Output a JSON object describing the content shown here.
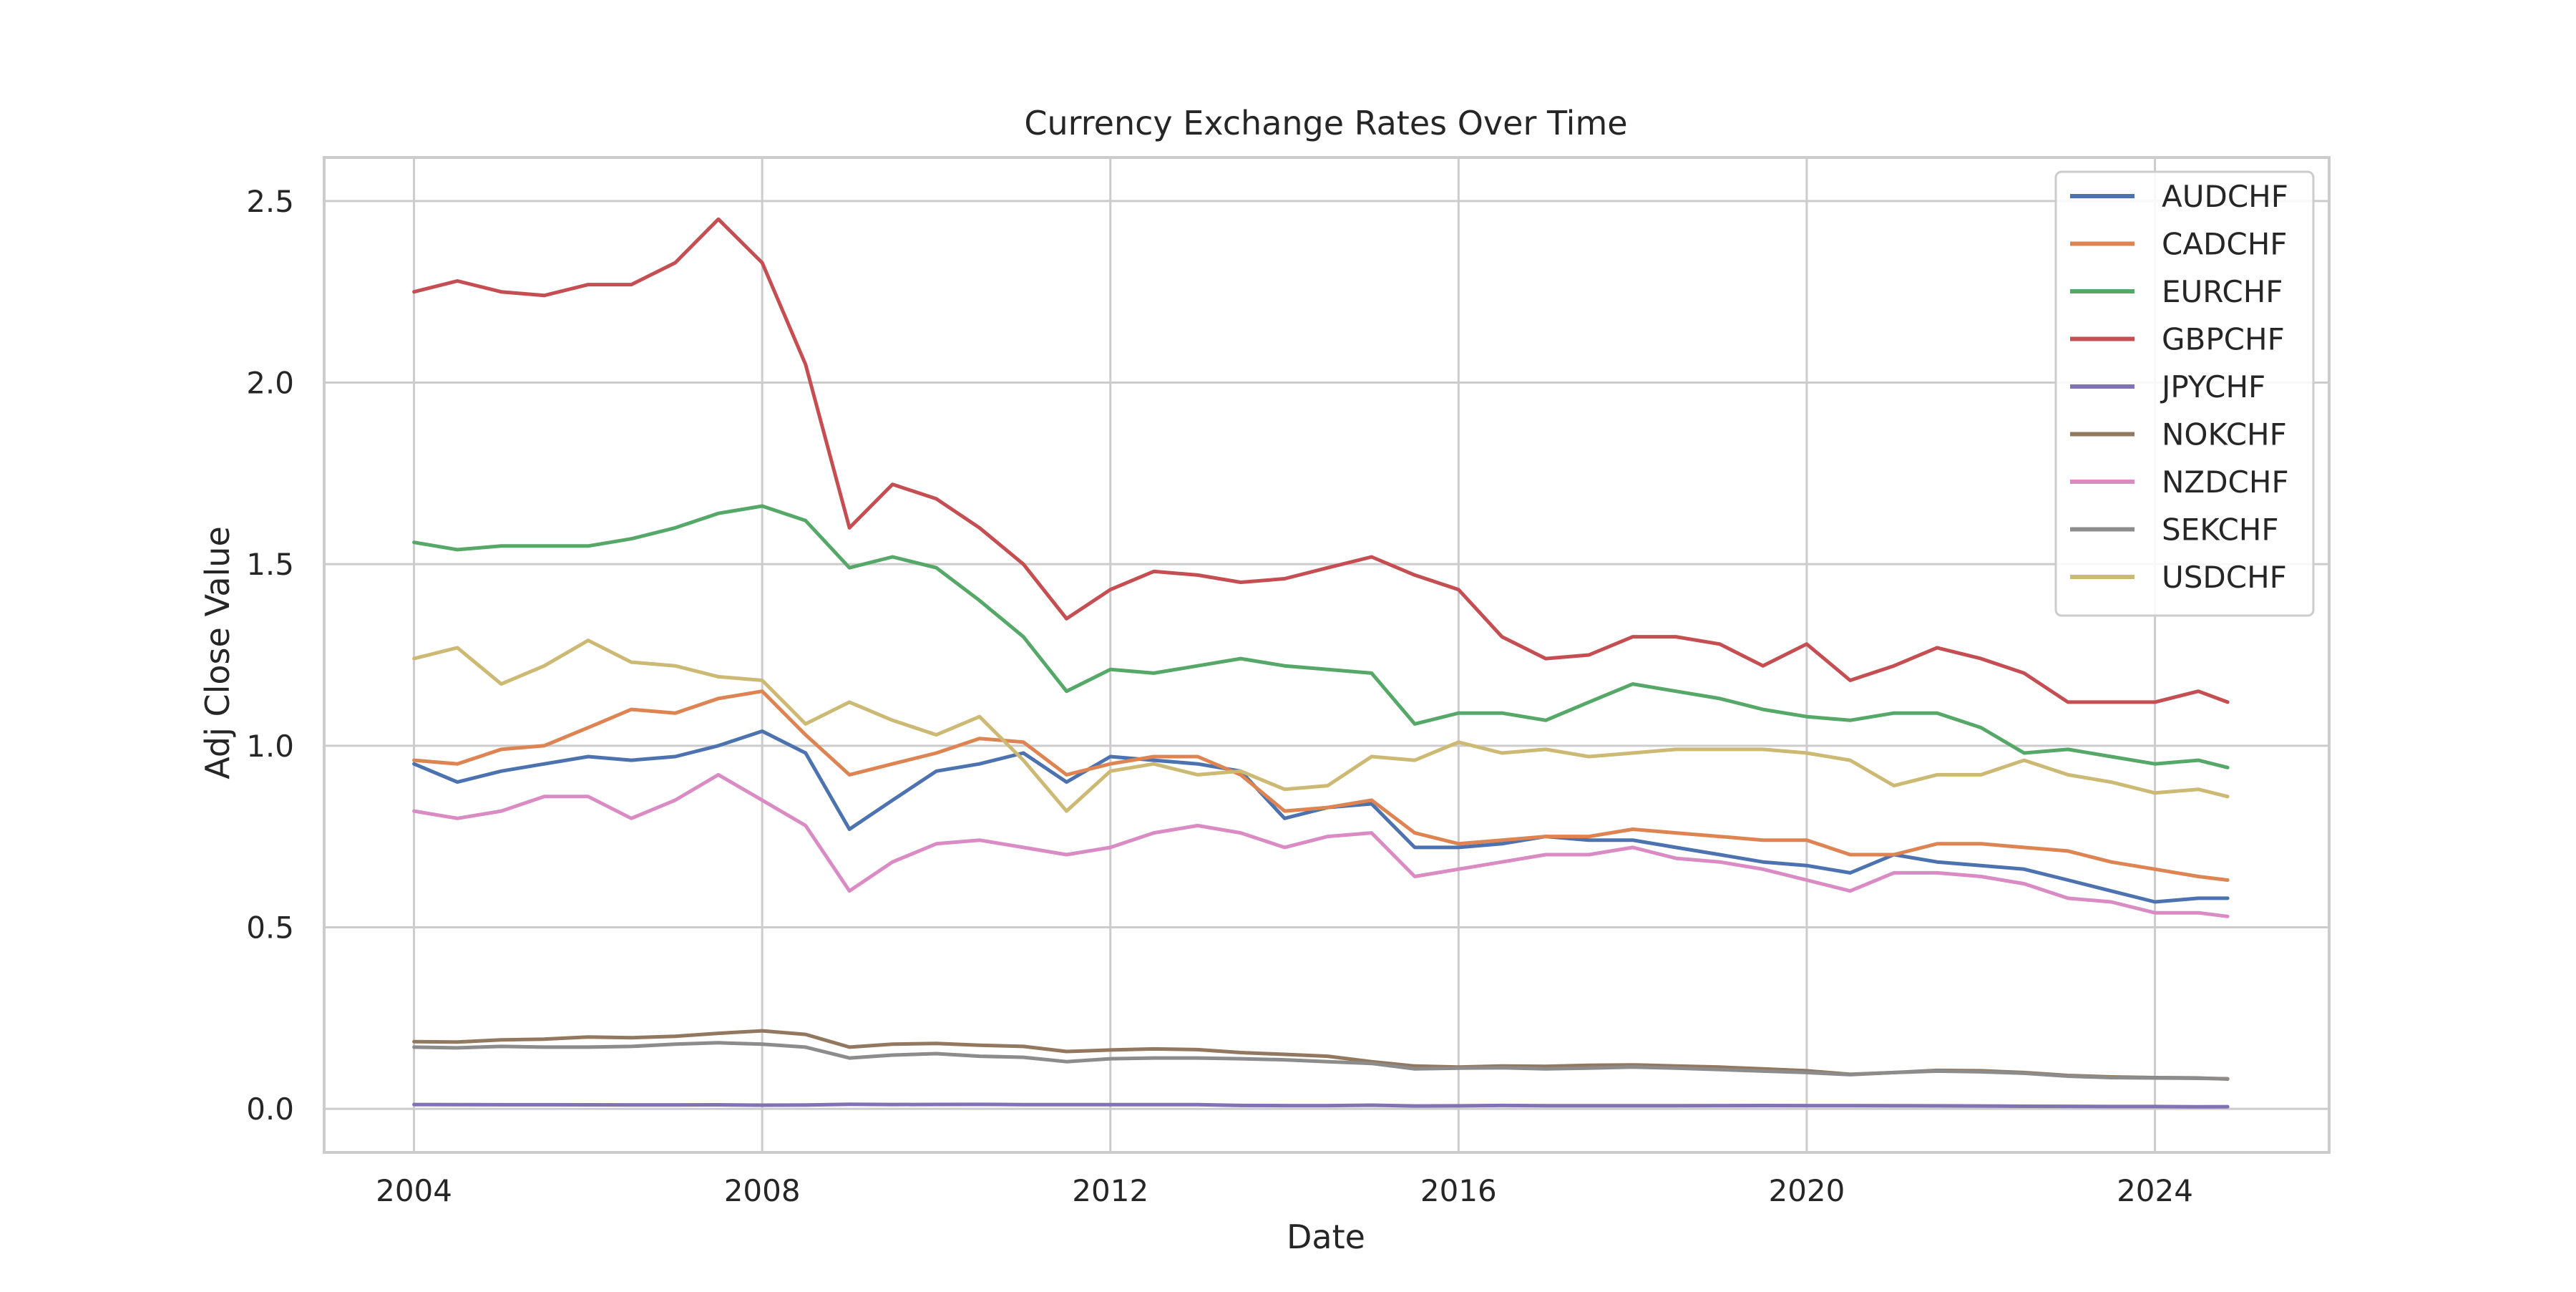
{
  "chart_data": {
    "type": "line",
    "title": "Currency Exchange Rates Over Time",
    "xlabel": "Date",
    "ylabel": "Adj Close Value",
    "xlim": [
      "2002-12-20",
      "2026-01-01"
    ],
    "ylim": [
      -0.12,
      2.62
    ],
    "x_ticks": [
      {
        "date": "2004-01-01",
        "label": "2004"
      },
      {
        "date": "2008-01-01",
        "label": "2008"
      },
      {
        "date": "2012-01-01",
        "label": "2012"
      },
      {
        "date": "2016-01-01",
        "label": "2016"
      },
      {
        "date": "2020-01-01",
        "label": "2020"
      },
      {
        "date": "2024-01-01",
        "label": "2024"
      }
    ],
    "y_ticks": [
      {
        "value": 0.0,
        "label": "0.0"
      },
      {
        "value": 0.5,
        "label": "0.5"
      },
      {
        "value": 1.0,
        "label": "1.0"
      },
      {
        "value": 1.5,
        "label": "1.5"
      },
      {
        "value": 2.0,
        "label": "2.0"
      },
      {
        "value": 2.5,
        "label": "2.5"
      }
    ],
    "grid": true,
    "legend_position": "top-right",
    "x": [
      "2004-01-01",
      "2004-07-01",
      "2005-01-01",
      "2005-07-01",
      "2006-01-01",
      "2006-07-01",
      "2007-01-01",
      "2007-07-01",
      "2008-01-01",
      "2008-07-01",
      "2009-01-01",
      "2009-07-01",
      "2010-01-01",
      "2010-07-01",
      "2011-01-01",
      "2011-07-01",
      "2012-01-01",
      "2012-07-01",
      "2013-01-01",
      "2013-07-01",
      "2014-01-01",
      "2014-07-01",
      "2015-01-01",
      "2015-07-01",
      "2016-01-01",
      "2016-07-01",
      "2017-01-01",
      "2017-07-01",
      "2018-01-01",
      "2018-07-01",
      "2019-01-01",
      "2019-07-01",
      "2020-01-01",
      "2020-07-01",
      "2021-01-01",
      "2021-07-01",
      "2022-01-01",
      "2022-07-01",
      "2023-01-01",
      "2023-07-01",
      "2024-01-01",
      "2024-07-01",
      "2024-11-01"
    ],
    "series": [
      {
        "name": "AUDCHF",
        "color": "#4c72b0",
        "values": [
          0.95,
          0.9,
          0.93,
          0.95,
          0.97,
          0.96,
          0.97,
          1.0,
          1.04,
          0.98,
          0.77,
          0.85,
          0.93,
          0.95,
          0.98,
          0.9,
          0.97,
          0.96,
          0.95,
          0.93,
          0.8,
          0.83,
          0.84,
          0.72,
          0.72,
          0.73,
          0.75,
          0.74,
          0.74,
          0.72,
          0.7,
          0.68,
          0.67,
          0.65,
          0.7,
          0.68,
          0.67,
          0.66,
          0.63,
          0.6,
          0.57,
          0.58,
          0.58
        ]
      },
      {
        "name": "CADCHF",
        "color": "#dd8452",
        "values": [
          0.96,
          0.95,
          0.99,
          1.0,
          1.05,
          1.1,
          1.09,
          1.13,
          1.15,
          1.03,
          0.92,
          0.95,
          0.98,
          1.02,
          1.01,
          0.92,
          0.95,
          0.97,
          0.97,
          0.92,
          0.82,
          0.83,
          0.85,
          0.76,
          0.73,
          0.74,
          0.75,
          0.75,
          0.77,
          0.76,
          0.75,
          0.74,
          0.74,
          0.7,
          0.7,
          0.73,
          0.73,
          0.72,
          0.71,
          0.68,
          0.66,
          0.64,
          0.63
        ]
      },
      {
        "name": "EURCHF",
        "color": "#55a868",
        "values": [
          1.56,
          1.54,
          1.55,
          1.55,
          1.55,
          1.57,
          1.6,
          1.64,
          1.66,
          1.62,
          1.49,
          1.52,
          1.49,
          1.4,
          1.3,
          1.15,
          1.21,
          1.2,
          1.22,
          1.24,
          1.22,
          1.21,
          1.2,
          1.06,
          1.09,
          1.09,
          1.07,
          1.12,
          1.17,
          1.15,
          1.13,
          1.1,
          1.08,
          1.07,
          1.09,
          1.09,
          1.05,
          0.98,
          0.99,
          0.97,
          0.95,
          0.96,
          0.94
        ]
      },
      {
        "name": "GBPCHF",
        "color": "#c44e52",
        "values": [
          2.25,
          2.28,
          2.25,
          2.24,
          2.27,
          2.27,
          2.33,
          2.45,
          2.33,
          2.05,
          1.6,
          1.72,
          1.68,
          1.6,
          1.5,
          1.35,
          1.43,
          1.48,
          1.47,
          1.45,
          1.46,
          1.49,
          1.52,
          1.47,
          1.43,
          1.3,
          1.24,
          1.25,
          1.3,
          1.3,
          1.28,
          1.22,
          1.28,
          1.18,
          1.22,
          1.27,
          1.24,
          1.2,
          1.12,
          1.12,
          1.12,
          1.15,
          1.12
        ]
      },
      {
        "name": "JPYCHF",
        "color": "#8172b3",
        "values": [
          0.0118,
          0.0116,
          0.0113,
          0.0112,
          0.011,
          0.0109,
          0.0108,
          0.011,
          0.0101,
          0.0105,
          0.0125,
          0.0118,
          0.012,
          0.0122,
          0.0117,
          0.0115,
          0.0116,
          0.0115,
          0.0114,
          0.0094,
          0.009,
          0.009,
          0.0101,
          0.008,
          0.0084,
          0.0094,
          0.0086,
          0.0088,
          0.0087,
          0.0088,
          0.009,
          0.0091,
          0.0089,
          0.009,
          0.0088,
          0.0083,
          0.008,
          0.0071,
          0.007,
          0.0064,
          0.0063,
          0.0058,
          0.0059
        ]
      },
      {
        "name": "NOKCHF",
        "color": "#937860",
        "values": [
          0.185,
          0.184,
          0.19,
          0.192,
          0.198,
          0.196,
          0.2,
          0.208,
          0.215,
          0.205,
          0.17,
          0.178,
          0.18,
          0.175,
          0.172,
          0.158,
          0.162,
          0.165,
          0.163,
          0.155,
          0.15,
          0.145,
          0.13,
          0.118,
          0.115,
          0.118,
          0.117,
          0.12,
          0.121,
          0.118,
          0.115,
          0.11,
          0.105,
          0.095,
          0.1,
          0.106,
          0.105,
          0.1,
          0.092,
          0.088,
          0.086,
          0.085,
          0.082
        ]
      },
      {
        "name": "NZDCHF",
        "color": "#da8bc3",
        "values": [
          0.82,
          0.8,
          0.82,
          0.86,
          0.86,
          0.8,
          0.85,
          0.92,
          0.85,
          0.78,
          0.6,
          0.68,
          0.73,
          0.74,
          0.72,
          0.7,
          0.72,
          0.76,
          0.78,
          0.76,
          0.72,
          0.75,
          0.76,
          0.64,
          0.66,
          0.68,
          0.7,
          0.7,
          0.72,
          0.69,
          0.68,
          0.66,
          0.63,
          0.6,
          0.65,
          0.65,
          0.64,
          0.62,
          0.58,
          0.57,
          0.54,
          0.54,
          0.53
        ]
      },
      {
        "name": "SEKCHF",
        "color": "#8c8c8c",
        "values": [
          0.17,
          0.168,
          0.172,
          0.17,
          0.17,
          0.172,
          0.178,
          0.182,
          0.178,
          0.17,
          0.14,
          0.148,
          0.152,
          0.145,
          0.142,
          0.13,
          0.138,
          0.14,
          0.14,
          0.138,
          0.135,
          0.13,
          0.125,
          0.11,
          0.112,
          0.113,
          0.11,
          0.112,
          0.115,
          0.112,
          0.108,
          0.104,
          0.1,
          0.094,
          0.1,
          0.104,
          0.102,
          0.098,
          0.09,
          0.086,
          0.085,
          0.084,
          0.083
        ]
      },
      {
        "name": "USDCHF",
        "color": "#ccb974",
        "values": [
          1.24,
          1.27,
          1.17,
          1.22,
          1.29,
          1.23,
          1.22,
          1.19,
          1.18,
          1.06,
          1.12,
          1.07,
          1.03,
          1.08,
          0.96,
          0.82,
          0.93,
          0.95,
          0.92,
          0.93,
          0.88,
          0.89,
          0.97,
          0.96,
          1.01,
          0.98,
          0.99,
          0.97,
          0.98,
          0.99,
          0.99,
          0.99,
          0.98,
          0.96,
          0.89,
          0.92,
          0.92,
          0.96,
          0.92,
          0.9,
          0.87,
          0.88,
          0.86
        ]
      }
    ]
  }
}
